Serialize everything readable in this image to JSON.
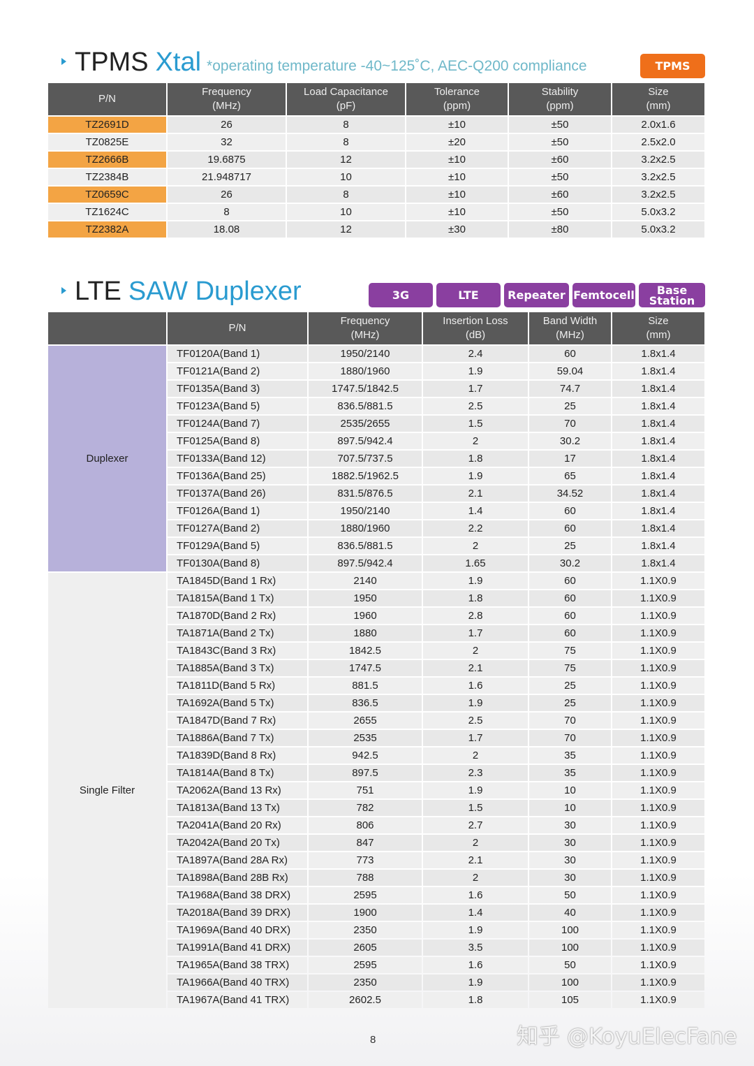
{
  "tpms": {
    "title_black": "TPMS",
    "title_blue": "Xtal",
    "note": "*operating temperature -40~125˚C, AEC-Q200 compliance",
    "badge": "TPMS",
    "headers": [
      [
        "P/N",
        ""
      ],
      [
        "Frequency",
        "(MHz)"
      ],
      [
        "Load Capacitance",
        "(pF)"
      ],
      [
        "Tolerance",
        "(ppm)"
      ],
      [
        "Stability",
        "(ppm)"
      ],
      [
        "Size",
        "(mm)"
      ]
    ],
    "rows": [
      [
        "TZ2691D",
        "26",
        "8",
        "±10",
        "±50",
        "2.0x1.6"
      ],
      [
        "TZ0825E",
        "32",
        "8",
        "±20",
        "±50",
        "2.5x2.0"
      ],
      [
        "TZ2666B",
        "19.6875",
        "12",
        "±10",
        "±60",
        "3.2x2.5"
      ],
      [
        "TZ2384B",
        "21.948717",
        "10",
        "±10",
        "±50",
        "3.2x2.5"
      ],
      [
        "TZ0659C",
        "26",
        "8",
        "±10",
        "±60",
        "3.2x2.5"
      ],
      [
        "TZ1624C",
        "8",
        "10",
        "±10",
        "±50",
        "5.0x3.2"
      ],
      [
        "TZ2382A",
        "18.08",
        "12",
        "±30",
        "±80",
        "5.0x3.2"
      ]
    ]
  },
  "lte": {
    "title_black": "LTE",
    "title_blue": "SAW Duplexer",
    "badges": [
      "3G",
      "LTE",
      "Repeater",
      "Femtocell",
      "Base Station"
    ],
    "headers": [
      [
        "",
        ""
      ],
      [
        "P/N",
        ""
      ],
      [
        "Frequency",
        "(MHz)"
      ],
      [
        "Insertion Loss",
        "(dB)"
      ],
      [
        "Band Width",
        "(MHz)"
      ],
      [
        "Size",
        "(mm)"
      ]
    ],
    "groups": [
      {
        "name": "Duplexer",
        "rows": [
          [
            "TF0120A(Band 1)",
            "1950/2140",
            "2.4",
            "60",
            "1.8x1.4"
          ],
          [
            "TF0121A(Band 2)",
            "1880/1960",
            "1.9",
            "59.04",
            "1.8x1.4"
          ],
          [
            "TF0135A(Band 3)",
            "1747.5/1842.5",
            "1.7",
            "74.7",
            "1.8x1.4"
          ],
          [
            "TF0123A(Band 5)",
            "836.5/881.5",
            "2.5",
            "25",
            "1.8x1.4"
          ],
          [
            "TF0124A(Band 7)",
            "2535/2655",
            "1.5",
            "70",
            "1.8x1.4"
          ],
          [
            "TF0125A(Band 8)",
            "897.5/942.4",
            "2",
            "30.2",
            "1.8x1.4"
          ],
          [
            "TF0133A(Band 12)",
            "707.5/737.5",
            "1.8",
            "17",
            "1.8x1.4"
          ],
          [
            "TF0136A(Band 25)",
            "1882.5/1962.5",
            "1.9",
            "65",
            "1.8x1.4"
          ],
          [
            "TF0137A(Band 26)",
            "831.5/876.5",
            "2.1",
            "34.52",
            "1.8x1.4"
          ],
          [
            "TF0126A(Band 1)",
            "1950/2140",
            "1.4",
            "60",
            "1.8x1.4"
          ],
          [
            "TF0127A(Band 2)",
            "1880/1960",
            "2.2",
            "60",
            "1.8x1.4"
          ],
          [
            "TF0129A(Band 5)",
            "836.5/881.5",
            "2",
            "25",
            "1.8x1.4"
          ],
          [
            "TF0130A(Band 8)",
            "897.5/942.4",
            "1.65",
            "30.2",
            "1.8x1.4"
          ]
        ]
      },
      {
        "name": "Single Filter",
        "rows": [
          [
            "TA1845D(Band 1 Rx)",
            "2140",
            "1.9",
            "60",
            "1.1X0.9"
          ],
          [
            "TA1815A(Band 1 Tx)",
            "1950",
            "1.8",
            "60",
            "1.1X0.9"
          ],
          [
            "TA1870D(Band 2 Rx)",
            "1960",
            "2.8",
            "60",
            "1.1X0.9"
          ],
          [
            "TA1871A(Band 2 Tx)",
            "1880",
            "1.7",
            "60",
            "1.1X0.9"
          ],
          [
            "TA1843C(Band 3 Rx)",
            "1842.5",
            "2",
            "75",
            "1.1X0.9"
          ],
          [
            "TA1885A(Band 3 Tx)",
            "1747.5",
            "2.1",
            "75",
            "1.1X0.9"
          ],
          [
            "TA1811D(Band 5 Rx)",
            "881.5",
            "1.6",
            "25",
            "1.1X0.9"
          ],
          [
            "TA1692A(Band 5 Tx)",
            "836.5",
            "1.9",
            "25",
            "1.1X0.9"
          ],
          [
            "TA1847D(Band 7 Rx)",
            "2655",
            "2.5",
            "70",
            "1.1X0.9"
          ],
          [
            "TA1886A(Band 7 Tx)",
            "2535",
            "1.7",
            "70",
            "1.1X0.9"
          ],
          [
            "TA1839D(Band 8 Rx)",
            "942.5",
            "2",
            "35",
            "1.1X0.9"
          ],
          [
            "TA1814A(Band 8 Tx)",
            "897.5",
            "2.3",
            "35",
            "1.1X0.9"
          ],
          [
            "TA2062A(Band 13 Rx)",
            "751",
            "1.9",
            "10",
            "1.1X0.9"
          ],
          [
            "TA1813A(Band 13 Tx)",
            "782",
            "1.5",
            "10",
            "1.1X0.9"
          ],
          [
            "TA2041A(Band 20 Rx)",
            "806",
            "2.7",
            "30",
            "1.1X0.9"
          ],
          [
            "TA2042A(Band 20 Tx)",
            "847",
            "2",
            "30",
            "1.1X0.9"
          ],
          [
            "TA1897A(Band 28A Rx)",
            "773",
            "2.1",
            "30",
            "1.1X0.9"
          ],
          [
            "TA1898A(Band 28B Rx)",
            "788",
            "2",
            "30",
            "1.1X0.9"
          ],
          [
            "TA1968A(Band 38 DRX)",
            "2595",
            "1.6",
            "50",
            "1.1X0.9"
          ],
          [
            "TA2018A(Band 39 DRX)",
            "1900",
            "1.4",
            "40",
            "1.1X0.9"
          ],
          [
            "TA1969A(Band 40 DRX)",
            "2350",
            "1.9",
            "100",
            "1.1X0.9"
          ],
          [
            "TA1991A(Band 41 DRX)",
            "2605",
            "3.5",
            "100",
            "1.1X0.9"
          ],
          [
            "TA1965A(Band 38 TRX)",
            "2595",
            "1.6",
            "50",
            "1.1X0.9"
          ],
          [
            "TA1966A(Band 40 TRX)",
            "2350",
            "1.9",
            "100",
            "1.1X0.9"
          ],
          [
            "TA1967A(Band 41 TRX)",
            "2602.5",
            "1.8",
            "105",
            "1.1X0.9"
          ]
        ]
      }
    ]
  },
  "page_number": "8",
  "watermark": "知乎 @KoyuElecFane",
  "colors": {
    "accent_blue": "#2a9bd0",
    "tpms_badge": "#ef6f1a",
    "lte_badge": "#8a3fa0",
    "header_bg": "#595959",
    "pn_orange": "#f3a444",
    "category_lavender": "#b7b1da"
  }
}
